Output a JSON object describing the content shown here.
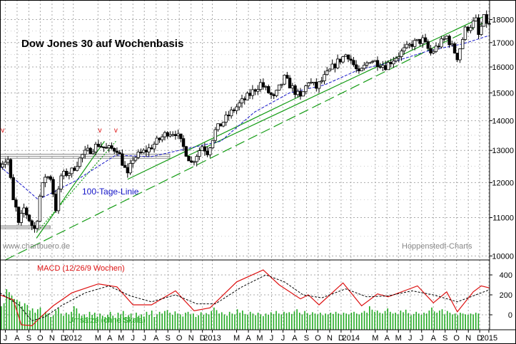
{
  "chart_data": {
    "type": "candlestick",
    "title": "Dow Jones 30 auf Wochenbasis",
    "watermark_left": "www.chartbuero.de",
    "watermark_right": "Hoppenstedt-Charts",
    "price_axis": {
      "scale": "log",
      "ylim": [
        9900,
        18900
      ],
      "ticks": [
        10000,
        11000,
        12000,
        13000,
        14000,
        15000,
        16000,
        17000,
        18000
      ],
      "tick_labels": [
        "10000",
        "11000",
        "12000",
        "13000",
        "14000",
        "15000",
        "16000",
        "17000",
        "18000"
      ]
    },
    "x_axis": {
      "start": "2011-07-01",
      "end": "2015-01-10",
      "tick_labels": [
        {
          "d": "2011-07-15",
          "t": "J"
        },
        {
          "d": "2011-08-15",
          "t": "A"
        },
        {
          "d": "2011-09-15",
          "t": "S"
        },
        {
          "d": "2011-10-15",
          "t": "O"
        },
        {
          "d": "2011-11-15",
          "t": "N"
        },
        {
          "d": "2011-12-15",
          "t": "D"
        },
        {
          "d": "2012-01-10",
          "t": "2012"
        },
        {
          "d": "2012-03-15",
          "t": "M"
        },
        {
          "d": "2012-04-15",
          "t": "A"
        },
        {
          "d": "2012-05-15",
          "t": "M"
        },
        {
          "d": "2012-06-15",
          "t": "J"
        },
        {
          "d": "2012-07-15",
          "t": "J"
        },
        {
          "d": "2012-08-15",
          "t": "A"
        },
        {
          "d": "2012-09-15",
          "t": "S"
        },
        {
          "d": "2012-10-15",
          "t": "O"
        },
        {
          "d": "2012-11-15",
          "t": "N"
        },
        {
          "d": "2012-12-15",
          "t": "D"
        },
        {
          "d": "2013-01-10",
          "t": "2013"
        },
        {
          "d": "2013-03-15",
          "t": "M"
        },
        {
          "d": "2013-04-15",
          "t": "A"
        },
        {
          "d": "2013-05-15",
          "t": "M"
        },
        {
          "d": "2013-06-15",
          "t": "J"
        },
        {
          "d": "2013-07-15",
          "t": "J"
        },
        {
          "d": "2013-08-15",
          "t": "A"
        },
        {
          "d": "2013-09-15",
          "t": "S"
        },
        {
          "d": "2013-10-15",
          "t": "O"
        },
        {
          "d": "2013-11-15",
          "t": "N"
        },
        {
          "d": "2013-12-15",
          "t": "D"
        },
        {
          "d": "2014-01-10",
          "t": "2014"
        },
        {
          "d": "2014-03-15",
          "t": "M"
        },
        {
          "d": "2014-04-15",
          "t": "A"
        },
        {
          "d": "2014-05-15",
          "t": "M"
        },
        {
          "d": "2014-06-15",
          "t": "J"
        },
        {
          "d": "2014-07-15",
          "t": "J"
        },
        {
          "d": "2014-08-15",
          "t": "A"
        },
        {
          "d": "2014-09-15",
          "t": "S"
        },
        {
          "d": "2014-10-15",
          "t": "O"
        },
        {
          "d": "2014-11-15",
          "t": "N"
        },
        {
          "d": "2014-12-15",
          "t": "D"
        },
        {
          "d": "2015-01-08",
          "t": "2015"
        }
      ]
    },
    "price_series": [
      {
        "d": "2011-07-01",
        "v": 12600
      },
      {
        "d": "2011-07-22",
        "v": 12700
      },
      {
        "d": "2011-08-05",
        "v": 11450
      },
      {
        "d": "2011-08-12",
        "v": 11250
      },
      {
        "d": "2011-08-19",
        "v": 10800
      },
      {
        "d": "2011-09-02",
        "v": 11250
      },
      {
        "d": "2011-09-23",
        "v": 10800
      },
      {
        "d": "2011-10-03",
        "v": 10650
      },
      {
        "d": "2011-10-14",
        "v": 11600
      },
      {
        "d": "2011-10-28",
        "v": 12200
      },
      {
        "d": "2011-11-11",
        "v": 12150
      },
      {
        "d": "2011-11-25",
        "v": 11250
      },
      {
        "d": "2011-12-09",
        "v": 12200
      },
      {
        "d": "2012-01-06",
        "v": 12350
      },
      {
        "d": "2012-02-03",
        "v": 12850
      },
      {
        "d": "2012-03-16",
        "v": 13200
      },
      {
        "d": "2012-04-06",
        "v": 13050
      },
      {
        "d": "2012-05-04",
        "v": 13050
      },
      {
        "d": "2012-06-01",
        "v": 12200
      },
      {
        "d": "2012-06-15",
        "v": 12750
      },
      {
        "d": "2012-07-27",
        "v": 13050
      },
      {
        "d": "2012-09-14",
        "v": 13600
      },
      {
        "d": "2012-10-05",
        "v": 13600
      },
      {
        "d": "2012-11-16",
        "v": 12600
      },
      {
        "d": "2012-12-14",
        "v": 13150
      },
      {
        "d": "2012-12-28",
        "v": 12950
      },
      {
        "d": "2013-01-18",
        "v": 13650
      },
      {
        "d": "2013-03-08",
        "v": 14400
      },
      {
        "d": "2013-04-12",
        "v": 14850
      },
      {
        "d": "2013-05-17",
        "v": 15350
      },
      {
        "d": "2013-06-21",
        "v": 14800
      },
      {
        "d": "2013-07-19",
        "v": 15550
      },
      {
        "d": "2013-08-30",
        "v": 14800
      },
      {
        "d": "2013-09-20",
        "v": 15450
      },
      {
        "d": "2013-10-11",
        "v": 15200
      },
      {
        "d": "2013-11-29",
        "v": 16100
      },
      {
        "d": "2013-12-31",
        "v": 16550
      },
      {
        "d": "2014-01-31",
        "v": 15700
      },
      {
        "d": "2014-02-28",
        "v": 16300
      },
      {
        "d": "2014-04-11",
        "v": 16050
      },
      {
        "d": "2014-05-16",
        "v": 16500
      },
      {
        "d": "2014-06-20",
        "v": 16950
      },
      {
        "d": "2014-07-18",
        "v": 17100
      },
      {
        "d": "2014-08-08",
        "v": 16550
      },
      {
        "d": "2014-09-19",
        "v": 17250
      },
      {
        "d": "2014-10-17",
        "v": 16400
      },
      {
        "d": "2014-11-07",
        "v": 17550
      },
      {
        "d": "2014-12-05",
        "v": 17950
      },
      {
        "d": "2014-12-12",
        "v": 17300
      },
      {
        "d": "2014-12-26",
        "v": 18050
      },
      {
        "d": "2015-01-09",
        "v": 17750
      }
    ],
    "ma_100": {
      "label": "100-Tage-Linie",
      "color": "#1515c8",
      "points": [
        {
          "d": "2011-07-01",
          "v": 12500
        },
        {
          "d": "2011-10-10",
          "v": 11500
        },
        {
          "d": "2012-01-15",
          "v": 12050
        },
        {
          "d": "2012-05-01",
          "v": 12850
        },
        {
          "d": "2012-08-01",
          "v": 12800
        },
        {
          "d": "2012-11-01",
          "v": 13050
        },
        {
          "d": "2013-02-01",
          "v": 13300
        },
        {
          "d": "2013-05-01",
          "v": 14300
        },
        {
          "d": "2013-08-01",
          "v": 15000
        },
        {
          "d": "2013-11-01",
          "v": 15300
        },
        {
          "d": "2014-02-01",
          "v": 15900
        },
        {
          "d": "2014-05-01",
          "v": 16200
        },
        {
          "d": "2014-08-01",
          "v": 16650
        },
        {
          "d": "2014-11-01",
          "v": 16950
        },
        {
          "d": "2015-01-09",
          "v": 17300
        }
      ]
    },
    "support_zones": [
      {
        "d1": "2011-07-01",
        "d2": "2012-09-20",
        "v1": 12750,
        "v2": 12880,
        "color": "#888888"
      },
      {
        "d1": "2011-07-01",
        "d2": "2011-11-10",
        "v1": 10700,
        "v2": 10780,
        "color": "#888888"
      }
    ],
    "trend_lines": [
      {
        "d1": "2011-07-15",
        "v1": 9900,
        "d2": "2015-01-05",
        "v2": 17950,
        "color": "#159c15",
        "dash": "long"
      },
      {
        "d1": "2011-10-05",
        "v1": 10450,
        "d2": "2012-04-01",
        "v2": 13300,
        "color": "#159c15",
        "dash": "solid"
      },
      {
        "d1": "2011-10-05",
        "v1": 10600,
        "d2": "2012-05-01",
        "v2": 13300,
        "color": "#159c15",
        "dash": "dot"
      },
      {
        "d1": "2012-06-01",
        "v1": 12100,
        "d2": "2013-09-01",
        "v2": 14900,
        "color": "#159c15",
        "dash": "solid"
      },
      {
        "d1": "2012-11-01",
        "v1": 12800,
        "d2": "2015-01-02",
        "v2": 18200,
        "color": "#159c15",
        "dash": "solid"
      }
    ],
    "markers": [
      {
        "d": "2011-07-08",
        "t": "v"
      },
      {
        "d": "2012-03-20",
        "t": "v"
      },
      {
        "d": "2012-05-01",
        "t": "v"
      }
    ],
    "macd": {
      "label": "MACD (12/26/9 Wochen)",
      "ylim": [
        -150,
        550
      ],
      "ticks": [
        400,
        200,
        0
      ],
      "tick_labels": [
        "400",
        "200",
        "0"
      ],
      "line": [
        {
          "d": "2011-07-01",
          "v": 200
        },
        {
          "d": "2011-08-05",
          "v": 150
        },
        {
          "d": "2011-08-26",
          "v": -100
        },
        {
          "d": "2011-09-23",
          "v": -110
        },
        {
          "d": "2011-10-14",
          "v": -30
        },
        {
          "d": "2011-11-18",
          "v": 90
        },
        {
          "d": "2012-01-06",
          "v": 220
        },
        {
          "d": "2012-03-16",
          "v": 310
        },
        {
          "d": "2012-05-04",
          "v": 280
        },
        {
          "d": "2012-06-15",
          "v": 100
        },
        {
          "d": "2012-08-03",
          "v": 100
        },
        {
          "d": "2012-10-05",
          "v": 240
        },
        {
          "d": "2012-11-23",
          "v": 40
        },
        {
          "d": "2013-01-04",
          "v": 70
        },
        {
          "d": "2013-03-15",
          "v": 330
        },
        {
          "d": "2013-05-24",
          "v": 450
        },
        {
          "d": "2013-07-05",
          "v": 300
        },
        {
          "d": "2013-08-30",
          "v": 160
        },
        {
          "d": "2013-09-20",
          "v": 200
        },
        {
          "d": "2013-10-18",
          "v": 100
        },
        {
          "d": "2013-12-20",
          "v": 320
        },
        {
          "d": "2014-02-07",
          "v": 90
        },
        {
          "d": "2014-03-21",
          "v": 210
        },
        {
          "d": "2014-04-18",
          "v": 180
        },
        {
          "d": "2014-06-06",
          "v": 250
        },
        {
          "d": "2014-07-04",
          "v": 290
        },
        {
          "d": "2014-08-15",
          "v": 120
        },
        {
          "d": "2014-09-19",
          "v": 230
        },
        {
          "d": "2014-10-17",
          "v": 30
        },
        {
          "d": "2014-11-28",
          "v": 230
        },
        {
          "d": "2014-12-19",
          "v": 290
        },
        {
          "d": "2015-01-09",
          "v": 270
        }
      ],
      "signal": [
        {
          "d": "2011-07-01",
          "v": 220
        },
        {
          "d": "2011-08-19",
          "v": 100
        },
        {
          "d": "2011-09-23",
          "v": -60
        },
        {
          "d": "2011-10-28",
          "v": -20
        },
        {
          "d": "2011-12-09",
          "v": 90
        },
        {
          "d": "2012-02-10",
          "v": 220
        },
        {
          "d": "2012-04-13",
          "v": 290
        },
        {
          "d": "2012-06-08",
          "v": 190
        },
        {
          "d": "2012-08-03",
          "v": 130
        },
        {
          "d": "2012-10-05",
          "v": 200
        },
        {
          "d": "2012-11-30",
          "v": 110
        },
        {
          "d": "2013-01-18",
          "v": 110
        },
        {
          "d": "2013-03-29",
          "v": 280
        },
        {
          "d": "2013-05-31",
          "v": 400
        },
        {
          "d": "2013-07-19",
          "v": 330
        },
        {
          "d": "2013-09-06",
          "v": 200
        },
        {
          "d": "2013-10-25",
          "v": 170
        },
        {
          "d": "2013-12-27",
          "v": 260
        },
        {
          "d": "2014-02-21",
          "v": 180
        },
        {
          "d": "2014-04-18",
          "v": 190
        },
        {
          "d": "2014-06-20",
          "v": 240
        },
        {
          "d": "2014-08-15",
          "v": 200
        },
        {
          "d": "2014-10-17",
          "v": 130
        },
        {
          "d": "2014-12-05",
          "v": 200
        },
        {
          "d": "2015-01-09",
          "v": 250
        }
      ]
    },
    "volume_label": "Umsätze (ohne Skala)",
    "volume": [
      0.55,
      0.62,
      0.95,
      0.88,
      0.8,
      0.72,
      0.7,
      0.66,
      0.55,
      0.62,
      0.58,
      0.45,
      0.5,
      0.4,
      0.48,
      0.52,
      0.35,
      0.42,
      0.38,
      0.3,
      0.34,
      0.45,
      0.5,
      0.38,
      0.33,
      0.4,
      0.36,
      0.42,
      0.55,
      0.5,
      0.38,
      0.33,
      0.36,
      0.3,
      0.42,
      0.35,
      0.4,
      0.31,
      0.38,
      0.33,
      0.3,
      0.35,
      0.42,
      0.33,
      0.28,
      0.4,
      0.36,
      0.44,
      0.3,
      0.34,
      0.38,
      0.27,
      0.4,
      0.33,
      0.36,
      0.31,
      0.42,
      0.35,
      0.45,
      0.3,
      0.36,
      0.42,
      0.38,
      0.44,
      0.46,
      0.4,
      0.35,
      0.43,
      0.38,
      0.36,
      0.31,
      0.4,
      0.42,
      0.36,
      0.38,
      0.3,
      0.34,
      0.41,
      0.35,
      0.39,
      0.36,
      0.44,
      0.52,
      0.46,
      0.38,
      0.41,
      0.36,
      0.33,
      0.42,
      0.38,
      0.36,
      0.48,
      0.4,
      0.45,
      0.37,
      0.35,
      0.42,
      0.38,
      0.34,
      0.4,
      0.36,
      0.32,
      0.38,
      0.35,
      0.41,
      0.37,
      0.44,
      0.38,
      0.36,
      0.42,
      0.39,
      0.41,
      0.37,
      0.43,
      0.48,
      0.4,
      0.36,
      0.44,
      0.39,
      0.35,
      0.41,
      0.38,
      0.36,
      0.4,
      0.34,
      0.38,
      0.36,
      0.4,
      0.37,
      0.42,
      0.38,
      0.35,
      0.4,
      0.38,
      0.36,
      0.4,
      0.42,
      0.38,
      0.36,
      0.4,
      0.44,
      0.4,
      0.55,
      0.47,
      0.42,
      0.45,
      0.4,
      0.38,
      0.44,
      0.5,
      0.42,
      0.38,
      0.4,
      0.36,
      0.45,
      0.41,
      0.47,
      0.39,
      0.34,
      0.37,
      0.42,
      0.38,
      0.35,
      0.4,
      0.38,
      0.45,
      0.52,
      0.43,
      0.4,
      0.45,
      0.48,
      0.36,
      0.44,
      0.4,
      0.36,
      0.38,
      0.34,
      0.4,
      0.38,
      0.36,
      0.35,
      0.38,
      0.36,
      0.4,
      0.38
    ],
    "colors": {
      "price": "#000000",
      "grid": "#aaaaaa",
      "trend": "#159c15",
      "ma": "#1515c8",
      "macd_line": "#dd1111",
      "macd_signal": "#000000",
      "volume": "#22aa22",
      "marker": "#dd1111",
      "title": "#000000",
      "watermark": "#888888"
    }
  }
}
